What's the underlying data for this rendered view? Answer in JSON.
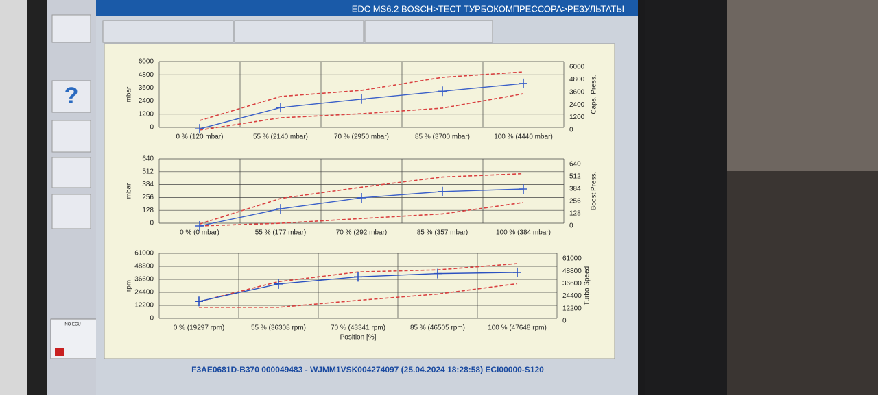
{
  "header": {
    "breadcrumb": "EDC MS6.2 BOSCH>ТЕСТ ТУРБОКОМПРЕССОРА>РЕЗУЛЬТАТЫ"
  },
  "sidebar": {
    "ecu_status": "NO ECU"
  },
  "footer": {
    "info": "F3AE0681D-B370 000049483 - WJMM1VSK004274097 (25.04.2024 18:28:58) ECI00000-S120"
  },
  "chart_data": [
    {
      "type": "line",
      "ylabel": "mbar",
      "y2label": "Caps. Press.",
      "categories": [
        "0 % (120 mbar)",
        "55 % (2140 mbar)",
        "70 % (2950 mbar)",
        "85 % (3700 mbar)",
        "100 % (4440 mbar)"
      ],
      "ylim": [
        0,
        6000
      ],
      "yticks": [
        0,
        1200,
        2400,
        3600,
        4800,
        6000
      ],
      "y2lim": [
        0,
        6000
      ],
      "y2ticks": [
        0,
        1200,
        2400,
        3600,
        4800,
        6000
      ],
      "grid": true,
      "series": [
        {
          "color": "#d94040",
          "dashed": true,
          "axis": "y2",
          "values": [
            910,
            3200,
            3780,
            5020,
            5540
          ]
        },
        {
          "color": "#d94040",
          "dashed": true,
          "axis": "y2",
          "values": [
            0,
            1170,
            1560,
            2090,
            3460
          ]
        },
        {
          "color": "#3a5fc8",
          "dashed": false,
          "markers": true,
          "axis": "y2",
          "values": [
            120,
            2140,
            2950,
            3700,
            4440
          ]
        }
      ]
    },
    {
      "type": "line",
      "ylabel": "mbar",
      "y2label": "Boost Press.",
      "categories": [
        "0 % (0 mbar)",
        "55 % (177 mbar)",
        "70 % (292 mbar)",
        "85 % (357 mbar)",
        "100 % (384 mbar)"
      ],
      "ylim": [
        0,
        640
      ],
      "yticks": [
        0,
        128,
        256,
        384,
        512,
        640
      ],
      "y2lim": [
        0,
        640
      ],
      "y2ticks": [
        0,
        128,
        256,
        384,
        512,
        640
      ],
      "grid": true,
      "series": [
        {
          "color": "#d94040",
          "dashed": true,
          "axis": "y2",
          "values": [
            20,
            285,
            403,
            508,
            543
          ]
        },
        {
          "color": "#d94040",
          "dashed": true,
          "axis": "y2",
          "values": [
            0,
            28,
            77,
            125,
            243
          ]
        },
        {
          "color": "#3a5fc8",
          "dashed": false,
          "markers": true,
          "axis": "y2",
          "values": [
            0,
            177,
            292,
            357,
            384
          ]
        }
      ]
    },
    {
      "type": "line",
      "ylabel": "rpm",
      "y2label": "Turbo Speed",
      "xlabel": "Position [%]",
      "categories": [
        "0 % (19297 rpm)",
        "55 % (36308 rpm)",
        "70 % (43341 rpm)",
        "85 % (46505 rpm)",
        "100 % (47648 rpm)"
      ],
      "ylim": [
        0,
        61000
      ],
      "yticks": [
        0,
        12200,
        24400,
        36600,
        48800,
        61000
      ],
      "y2lim": [
        0,
        61000
      ],
      "y2ticks": [
        0,
        12200,
        24400,
        36600,
        48800,
        61000
      ],
      "grid": true,
      "series": [
        {
          "color": "#d94040",
          "dashed": true,
          "axis": "y2",
          "values": [
            19000,
            38600,
            48100,
            50150,
            56300
          ]
        },
        {
          "color": "#d94040",
          "dashed": true,
          "axis": "y2",
          "values": [
            13500,
            13500,
            20300,
            26400,
            36600
          ]
        },
        {
          "color": "#2a50c0",
          "dashed": false,
          "markers": true,
          "axis": "y2",
          "values": [
            19297,
            36308,
            43341,
            46505,
            47648
          ]
        }
      ]
    }
  ]
}
